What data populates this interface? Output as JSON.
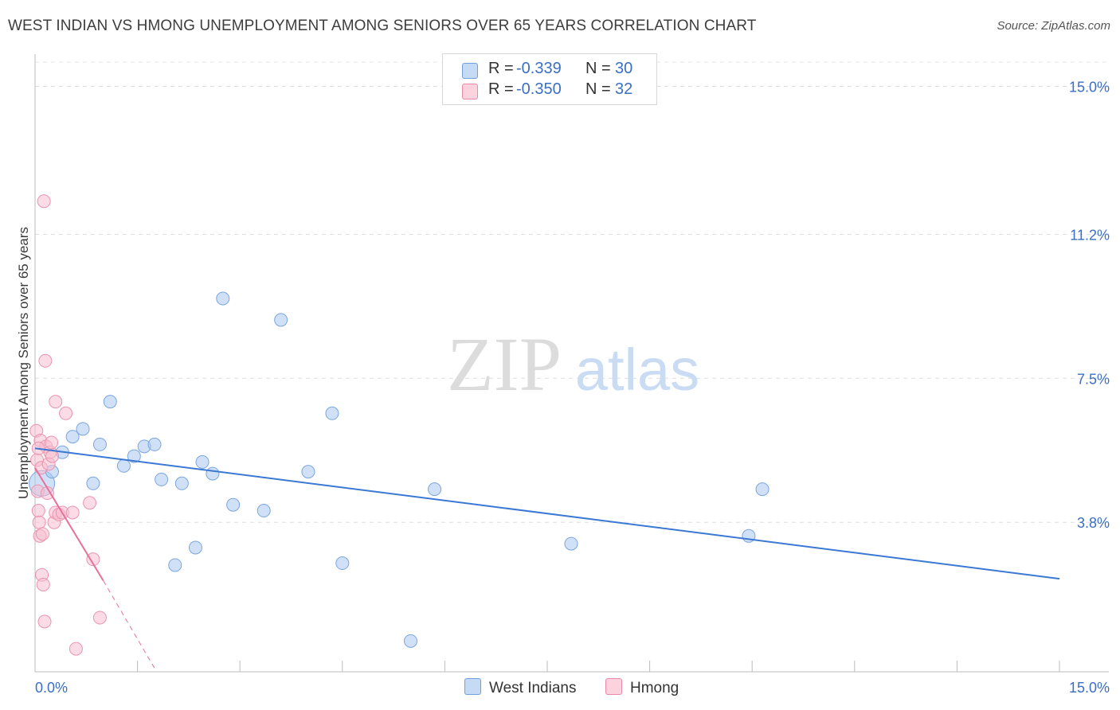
{
  "title": "WEST INDIAN VS HMONG UNEMPLOYMENT AMONG SENIORS OVER 65 YEARS CORRELATION CHART",
  "source": "Source: ZipAtlas.com",
  "watermark": {
    "zip": "ZIP",
    "atlas": "atlas"
  },
  "legend": {
    "rows": [
      {
        "r_label": "R =",
        "r_value": "-0.339",
        "n_label": "N =",
        "n_value": "30",
        "color": "#a9c8ee",
        "border": "#6f9fdc"
      },
      {
        "r_label": "R =",
        "r_value": "-0.350",
        "n_label": "N =",
        "n_value": "32",
        "color": "#f7bfd0",
        "border": "#e88aa8"
      }
    ]
  },
  "bottom_legend": {
    "west_indians": "West Indians",
    "hmong": "Hmong"
  },
  "chart_data": {
    "type": "scatter",
    "title": "WEST INDIAN VS HMONG UNEMPLOYMENT AMONG SENIORS OVER 65 YEARS CORRELATION CHART",
    "xlabel": "",
    "ylabel": "Unemployment Among Seniors over 65 years",
    "xlim": [
      0,
      15
    ],
    "ylim": [
      0,
      15
    ],
    "x_tick_labels": [
      "0.0%",
      "15.0%"
    ],
    "y_ticks": [
      3.8,
      7.5,
      11.2,
      15.0
    ],
    "y_tick_labels": [
      "3.8%",
      "7.5%",
      "11.2%",
      "15.0%"
    ],
    "grid": true,
    "colors": {
      "west_indians": "#3a78d4",
      "hmong": "#e8709a",
      "axis_text": "#3a6fc4"
    },
    "series": [
      {
        "name": "West Indians",
        "r": -0.339,
        "n": 30,
        "trend": {
          "x": [
            0.0,
            15.0
          ],
          "y": [
            5.7,
            2.35
          ]
        },
        "points": [
          {
            "x": 0.1,
            "y": 4.8,
            "big": true
          },
          {
            "x": 0.25,
            "y": 5.1
          },
          {
            "x": 0.4,
            "y": 5.6
          },
          {
            "x": 0.55,
            "y": 6.0
          },
          {
            "x": 0.7,
            "y": 6.2
          },
          {
            "x": 0.85,
            "y": 4.8
          },
          {
            "x": 0.95,
            "y": 5.8
          },
          {
            "x": 1.1,
            "y": 6.9
          },
          {
            "x": 1.3,
            "y": 5.25
          },
          {
            "x": 1.45,
            "y": 5.5
          },
          {
            "x": 1.6,
            "y": 5.75
          },
          {
            "x": 1.75,
            "y": 5.8
          },
          {
            "x": 1.85,
            "y": 4.9
          },
          {
            "x": 2.05,
            "y": 2.7
          },
          {
            "x": 2.15,
            "y": 4.8
          },
          {
            "x": 2.35,
            "y": 3.15
          },
          {
            "x": 2.45,
            "y": 5.35
          },
          {
            "x": 2.6,
            "y": 5.05
          },
          {
            "x": 2.75,
            "y": 9.55
          },
          {
            "x": 2.9,
            "y": 4.25
          },
          {
            "x": 3.35,
            "y": 4.1
          },
          {
            "x": 3.6,
            "y": 9.0
          },
          {
            "x": 4.0,
            "y": 5.1
          },
          {
            "x": 4.35,
            "y": 6.6
          },
          {
            "x": 4.5,
            "y": 2.75
          },
          {
            "x": 5.5,
            "y": 0.75
          },
          {
            "x": 5.85,
            "y": 4.65
          },
          {
            "x": 7.85,
            "y": 3.25
          },
          {
            "x": 10.45,
            "y": 3.45
          },
          {
            "x": 10.65,
            "y": 4.65
          }
        ]
      },
      {
        "name": "Hmong",
        "r": -0.35,
        "n": 32,
        "trend": {
          "x": [
            0.0,
            1.0
          ],
          "y": [
            5.2,
            2.3
          ]
        },
        "trend_dashed": {
          "x": [
            1.0,
            1.75
          ],
          "y": [
            2.3,
            0.05
          ]
        },
        "points": [
          {
            "x": 0.02,
            "y": 6.15
          },
          {
            "x": 0.03,
            "y": 5.4
          },
          {
            "x": 0.04,
            "y": 4.6
          },
          {
            "x": 0.05,
            "y": 4.1
          },
          {
            "x": 0.06,
            "y": 3.8
          },
          {
            "x": 0.07,
            "y": 3.45
          },
          {
            "x": 0.08,
            "y": 5.9
          },
          {
            "x": 0.09,
            "y": 5.2
          },
          {
            "x": 0.1,
            "y": 2.45
          },
          {
            "x": 0.11,
            "y": 3.5
          },
          {
            "x": 0.12,
            "y": 2.2
          },
          {
            "x": 0.13,
            "y": 12.05
          },
          {
            "x": 0.14,
            "y": 1.25
          },
          {
            "x": 0.15,
            "y": 7.95
          },
          {
            "x": 0.16,
            "y": 5.75
          },
          {
            "x": 0.18,
            "y": 4.55
          },
          {
            "x": 0.2,
            "y": 5.3
          },
          {
            "x": 0.22,
            "y": 5.6
          },
          {
            "x": 0.24,
            "y": 5.85
          },
          {
            "x": 0.25,
            "y": 5.5
          },
          {
            "x": 0.28,
            "y": 3.8
          },
          {
            "x": 0.3,
            "y": 4.05
          },
          {
            "x": 0.3,
            "y": 6.9
          },
          {
            "x": 0.35,
            "y": 4.0
          },
          {
            "x": 0.4,
            "y": 4.05
          },
          {
            "x": 0.45,
            "y": 6.6
          },
          {
            "x": 0.55,
            "y": 4.05
          },
          {
            "x": 0.6,
            "y": 0.55
          },
          {
            "x": 0.8,
            "y": 4.3
          },
          {
            "x": 0.85,
            "y": 2.85
          },
          {
            "x": 0.95,
            "y": 1.35
          },
          {
            "x": 0.05,
            "y": 5.7
          }
        ]
      }
    ]
  }
}
